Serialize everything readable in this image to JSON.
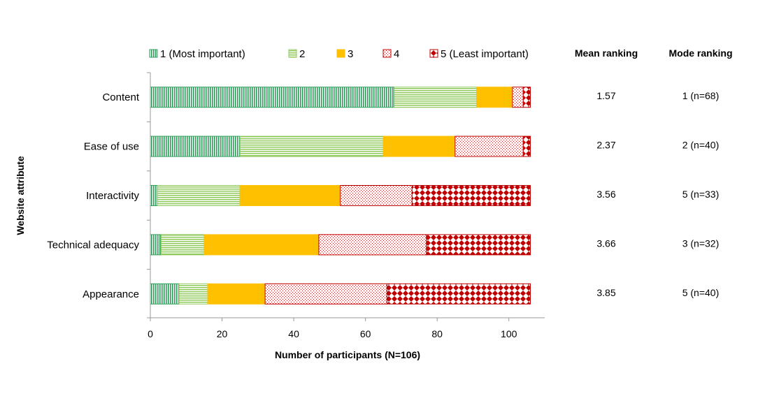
{
  "chart_data": {
    "type": "bar",
    "orientation": "horizontal",
    "stacked": true,
    "categories": [
      "Content",
      "Ease of use",
      "Interactivity",
      "Technical adequacy",
      "Appearance"
    ],
    "series": [
      {
        "name": "1 (Most important)",
        "values": [
          68,
          25,
          2,
          3,
          8
        ],
        "color": "#2e9e5b",
        "pattern": "vertical-lines"
      },
      {
        "name": "2",
        "values": [
          23,
          40,
          23,
          12,
          8
        ],
        "color": "#8fc95b",
        "pattern": "horizontal-lines"
      },
      {
        "name": "3",
        "values": [
          10,
          20,
          28,
          32,
          16
        ],
        "color": "#ffc000",
        "pattern": "solid"
      },
      {
        "name": "4",
        "values": [
          3,
          19,
          20,
          30,
          34
        ],
        "color": "#c00000",
        "pattern": "dots"
      },
      {
        "name": "5 (Least important)",
        "values": [
          2,
          2,
          33,
          29,
          40
        ],
        "color": "#c00000",
        "pattern": "diamonds"
      }
    ],
    "xlabel": "Number of participants (N=106)",
    "ylabel": "Website attribute",
    "xlim": [
      0,
      110
    ],
    "xticks": [
      0,
      20,
      40,
      60,
      80,
      100
    ],
    "grid": false,
    "legend_position": "top",
    "table": {
      "columns": [
        "Mean ranking",
        "Mode ranking"
      ],
      "rows": [
        [
          "1.57",
          "1 (n=68)"
        ],
        [
          "2.37",
          "2 (n=40)"
        ],
        [
          "3.56",
          "5 (n=33)"
        ],
        [
          "3.66",
          "3 (n=32)"
        ],
        [
          "3.85",
          "5 (n=40)"
        ]
      ]
    }
  }
}
